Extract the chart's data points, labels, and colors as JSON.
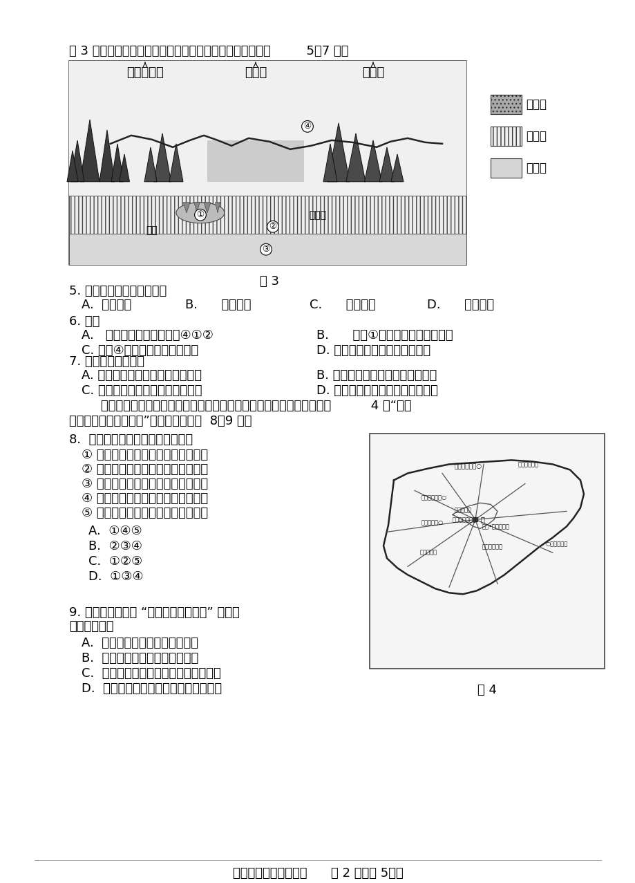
{
  "page_bg": "#ffffff",
  "text_color": "#000000",
  "figsize": [
    9.2,
    12.77
  ],
  "dpi": 100,
  "top_text": "图 3 为我国某地地质、地貌和农业分布示意图。读图，回答         5～7 题。",
  "fig3_caption": "图 3",
  "fig3_label_shuitu": "水土保持林",
  "fig3_label_nongtian": "农　田",
  "fig3_label_jingjiu": "经济林",
  "fig3_legend_0": "冲积物",
  "fig3_legend_1": "石灰岩",
  "fig3_legend_2": "页　岩",
  "fig3_anhe": "暗河",
  "fig3_shizhongru": "石钒乳",
  "q5_stem": "5. 图中地貌广泛分布于我国",
  "q5_A": "A.",
  "q5_A_text": "东北地区",
  "q5_B": "B.",
  "q5_B_text": "西北地区",
  "q5_C": "C.",
  "q5_C_text": "西南地区",
  "q5_D": "D.",
  "q5_D_text": "青藏地区",
  "q6_stem": "6. 图中",
  "q6_A_text": "地质地貌的形成顺序是④①②",
  "q6_B_text": "岩层①是由于变质作用形成的",
  "q6_C_text": "C. 河流④处左屸堆积，右屸侵蚀",
  "q6_D_text": "D. 暗河主要通过蕲发参与水循环",
  "q7_stem": "7. 该区域的农业模式",
  "q7_A_text": "A. 发展优势是肋沃深厉的土壤条件",
  "q7_B_text": "B. 适合大型机械化生产，商品率高",
  "q7_C_text": "C. 有利于减轻滑坡、泥石流等灾害",
  "q7_D_text": "D. 可提升不同纬度水热资源利用率",
  "intro_line1": "        会展业是以会议、展览等活动带动相关产业发展的一种综合性产业。图          4 是“北京",
  "intro_line2": "市会展业功能区分布图”。读图，回答第  8、9 题。",
  "q8_stem": "8.  北京市会展业的优势区位条件有",
  "q8_item1": "① 依托首都城市职能，会展资源丰富",
  "q8_item2": "② 城市中心区地域广大，有发展空间",
  "q8_item3": "③ 交通便利，基础配套设施比较完善",
  "q8_item4": "④ 科技力量雄厉，综合服务水平较高",
  "q8_item5": "⑤ 经济发达，环境承载力提升潜力大",
  "q8_optA": "A.  ①④⑤",
  "q8_optB": "B.  ②③④",
  "q8_optC": "C.  ①②⑤",
  "q8_optD": "D.  ①③④",
  "q9_stem_line1": "9. 会展业又被称为 “城市建设的加速器” ，其作",
  "q9_stem_line2": "用主要表现为",
  "q9_optA": "A.  成为京郊农业发展的主要动力",
  "q9_optB": "B.  加强工业联系，促进工业集聚",
  "q9_optC": "C.  加快人、物、信息的流动，创造商机",
  "q9_optD": "D.  促使我国乡村人口向东部大城市迁移",
  "fig4_caption": "图 4",
  "footer": "高三二模文综地理试卷      第 2 页（共 5页）"
}
